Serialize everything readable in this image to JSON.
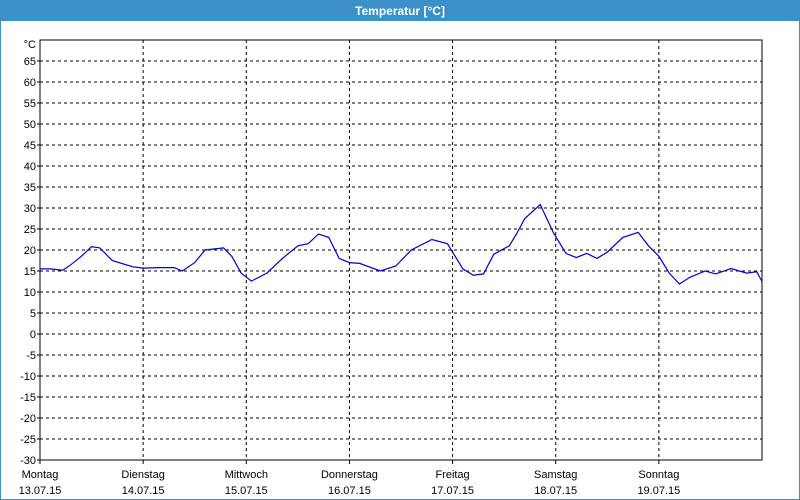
{
  "window": {
    "title": "Temperatur [°C]"
  },
  "colors": {
    "titlebar": "#3d8fc8",
    "line": "#0000cc",
    "grid": "#000000"
  },
  "chart_data": {
    "type": "line",
    "title": "Temperatur [°C]",
    "ylabel": "°C",
    "xlabel": "",
    "ylim": [
      -30,
      70
    ],
    "xlim": [
      0,
      7
    ],
    "grid": true,
    "grid_style": "dashed",
    "yticks": [
      "65",
      "60",
      "55",
      "50",
      "45",
      "40",
      "35",
      "30",
      "25",
      "20",
      "15",
      "10",
      "5",
      "0",
      "-5",
      "-10",
      "-15",
      "-20",
      "-25",
      "-30"
    ],
    "ytick_values": [
      65,
      60,
      55,
      50,
      45,
      40,
      35,
      30,
      25,
      20,
      15,
      10,
      5,
      0,
      -5,
      -10,
      -15,
      -20,
      -25,
      -30
    ],
    "xticks": [
      {
        "day": "Montag",
        "date": "13.07.15"
      },
      {
        "day": "Dienstag",
        "date": "14.07.15"
      },
      {
        "day": "Mittwoch",
        "date": "15.07.15"
      },
      {
        "day": "Donnerstag",
        "date": "16.07.15"
      },
      {
        "day": "Freitag",
        "date": "17.07.15"
      },
      {
        "day": "Samstag",
        "date": "18.07.15"
      },
      {
        "day": "Sonntag",
        "date": "19.07.15"
      }
    ],
    "series": [
      {
        "x": [
          0,
          0.1,
          0.22,
          0.3,
          0.4,
          0.5,
          0.58,
          0.7,
          0.9,
          1.0,
          1.15,
          1.3,
          1.38,
          1.5,
          1.6,
          1.78,
          1.86,
          1.95,
          2.05,
          2.2,
          2.35,
          2.5,
          2.6,
          2.7,
          2.8,
          2.9,
          3.0,
          3.1,
          3.3,
          3.45,
          3.6,
          3.8,
          3.95,
          4.1,
          4.2,
          4.3,
          4.4,
          4.55,
          4.62,
          4.7,
          4.85,
          4.98,
          5.1,
          5.2,
          5.3,
          5.4,
          5.5,
          5.65,
          5.8,
          5.9,
          6.0,
          6.1,
          6.2,
          6.3,
          6.45,
          6.55,
          6.7,
          6.85,
          6.95,
          7.0
        ],
        "y": [
          15.5,
          15.5,
          15.2,
          16.5,
          18.5,
          20.8,
          20.5,
          17.5,
          16,
          15.7,
          15.8,
          15.8,
          15,
          17,
          20,
          20.5,
          18.5,
          14.5,
          12.6,
          14.5,
          18,
          21,
          21.5,
          23.8,
          23,
          18,
          17,
          16.8,
          15,
          16.2,
          20,
          22.5,
          21.5,
          15.5,
          14,
          14.3,
          19,
          21,
          23.8,
          27.5,
          30.8,
          24,
          19.2,
          18.2,
          19.2,
          18,
          19.5,
          23,
          24.2,
          21,
          18.5,
          14.5,
          11.9,
          13.5,
          15,
          14.3,
          15.6,
          14.5,
          14.8,
          12.5
        ]
      }
    ]
  }
}
